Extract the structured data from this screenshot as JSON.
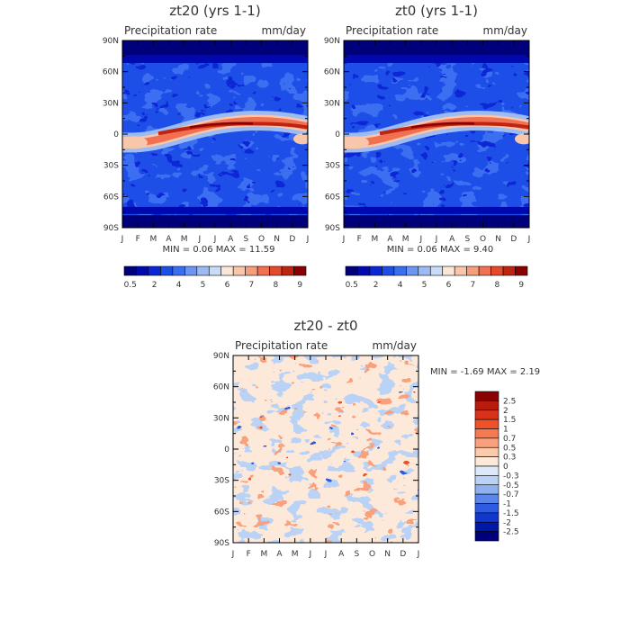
{
  "chart_data": [
    {
      "type": "heatmap",
      "title": "zt20 (yrs 1-1)",
      "subtitle_left": "Precipitation rate",
      "subtitle_right": "mm/day",
      "x_ticks": [
        "J",
        "F",
        "M",
        "A",
        "M",
        "J",
        "J",
        "A",
        "S",
        "O",
        "N",
        "D",
        "J"
      ],
      "y_ticks": [
        "90N",
        "60N",
        "30N",
        "0",
        "30S",
        "60S",
        "90S"
      ],
      "stats_text": "MIN =   0.06 MAX =   11.59",
      "min": 0.06,
      "max": 11.59,
      "colorbar": {
        "colors": [
          "#00007a",
          "#0008b0",
          "#0a27d6",
          "#1d4ee8",
          "#3a6ef0",
          "#6b96f2",
          "#9cbaf4",
          "#c9dcf7",
          "#fbe6d7",
          "#f8c6aa",
          "#f69e7c",
          "#f27052",
          "#e5482b",
          "#c02310",
          "#8b0000"
        ],
        "labels": [
          "0.5",
          "2",
          "4",
          "5",
          "6",
          "7",
          "8",
          "9"
        ]
      }
    },
    {
      "type": "heatmap",
      "title": "zt0 (yrs 1-1)",
      "subtitle_left": "Precipitation rate",
      "subtitle_right": "mm/day",
      "x_ticks": [
        "J",
        "F",
        "M",
        "A",
        "M",
        "J",
        "J",
        "A",
        "S",
        "O",
        "N",
        "D",
        "J"
      ],
      "y_ticks": [
        "90N",
        "60N",
        "30N",
        "0",
        "30S",
        "60S",
        "90S"
      ],
      "stats_text": "MIN =   0.06 MAX =   9.40",
      "min": 0.06,
      "max": 9.4,
      "colorbar": {
        "colors": [
          "#00007a",
          "#0008b0",
          "#0a27d6",
          "#1d4ee8",
          "#3a6ef0",
          "#6b96f2",
          "#9cbaf4",
          "#c9dcf7",
          "#fbe6d7",
          "#f8c6aa",
          "#f69e7c",
          "#f27052",
          "#e5482b",
          "#c02310",
          "#8b0000"
        ],
        "labels": [
          "0.5",
          "2",
          "4",
          "5",
          "6",
          "7",
          "8",
          "9"
        ]
      }
    },
    {
      "type": "heatmap",
      "title": "zt20 - zt0",
      "subtitle_left": "Precipitation rate",
      "subtitle_right": "mm/day",
      "x_ticks": [
        "J",
        "F",
        "M",
        "A",
        "M",
        "J",
        "J",
        "A",
        "S",
        "O",
        "N",
        "D",
        "J"
      ],
      "y_ticks": [
        "90N",
        "60N",
        "30N",
        "0",
        "30S",
        "60S",
        "90S"
      ],
      "stats_text": "MIN =  -1.69 MAX =   2.19",
      "min": -1.69,
      "max": 2.19,
      "colorbar": {
        "colors": [
          "#8b0000",
          "#b81c0c",
          "#d8331a",
          "#ef5128",
          "#f7794f",
          "#f9a07c",
          "#fbc9ab",
          "#fde9da",
          "#dde9f8",
          "#b9d2f5",
          "#8fb1ef",
          "#5a85ea",
          "#2e5be0",
          "#1137cc",
          "#0018a8",
          "#00007a"
        ],
        "labels": [
          "2.5",
          "2",
          "1.5",
          "1",
          "0.7",
          "0.5",
          "0.3",
          "0",
          "-0.3",
          "-0.5",
          "-0.7",
          "-1",
          "-1.5",
          "-2",
          "-2.5"
        ]
      }
    }
  ]
}
